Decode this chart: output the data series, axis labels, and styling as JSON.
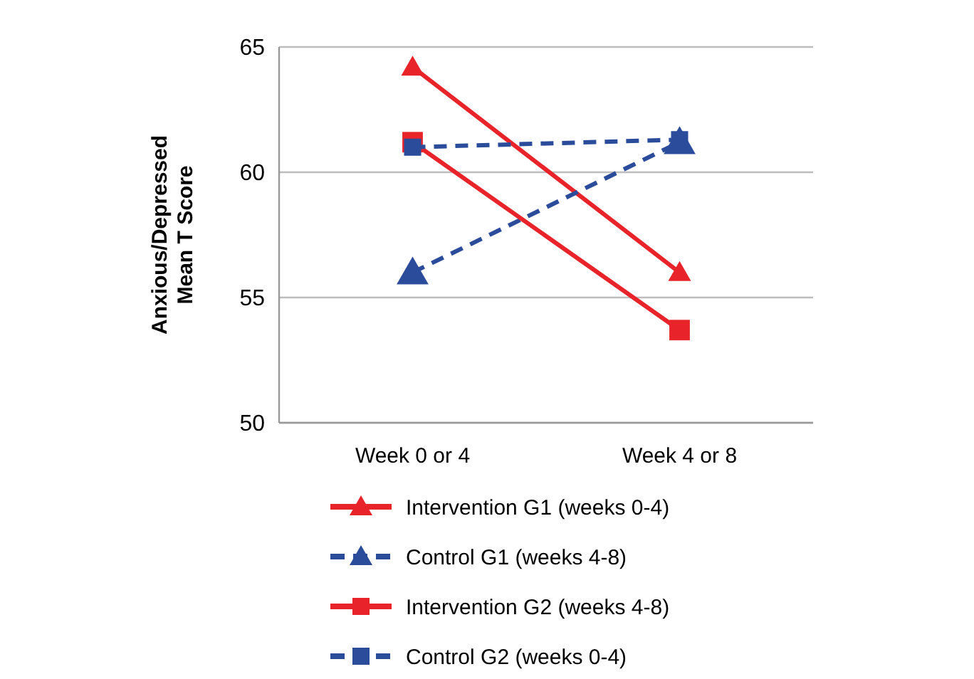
{
  "chart_data": {
    "type": "line",
    "ylabel": "Anxious/Depressed\nMean T Score",
    "categories": [
      "Week 0 or 4",
      "Week 4 or 8"
    ],
    "ylim": [
      50,
      65
    ],
    "yticks": [
      50,
      55,
      60,
      65
    ],
    "grid": "y",
    "legend": "bottom",
    "series": [
      {
        "name": "Intervention G1 (weeks 0-4)",
        "color": "#e8242a",
        "marker": "triangle",
        "line_style": "solid",
        "values": [
          64.2,
          56.0
        ]
      },
      {
        "name": "Control G1 (weeks 4-8)",
        "color": "#2b4c9b",
        "marker": "triangle",
        "line_style": "dashed",
        "values": [
          56.0,
          61.2
        ]
      },
      {
        "name": "Intervention G2 (weeks 4-8)",
        "color": "#e8242a",
        "marker": "square",
        "line_style": "solid",
        "values": [
          61.2,
          53.7
        ]
      },
      {
        "name": "Control G2 (weeks 0-4)",
        "color": "#2b4c9b",
        "marker": "square",
        "line_style": "dashed",
        "values": [
          61.0,
          61.3
        ]
      }
    ]
  }
}
